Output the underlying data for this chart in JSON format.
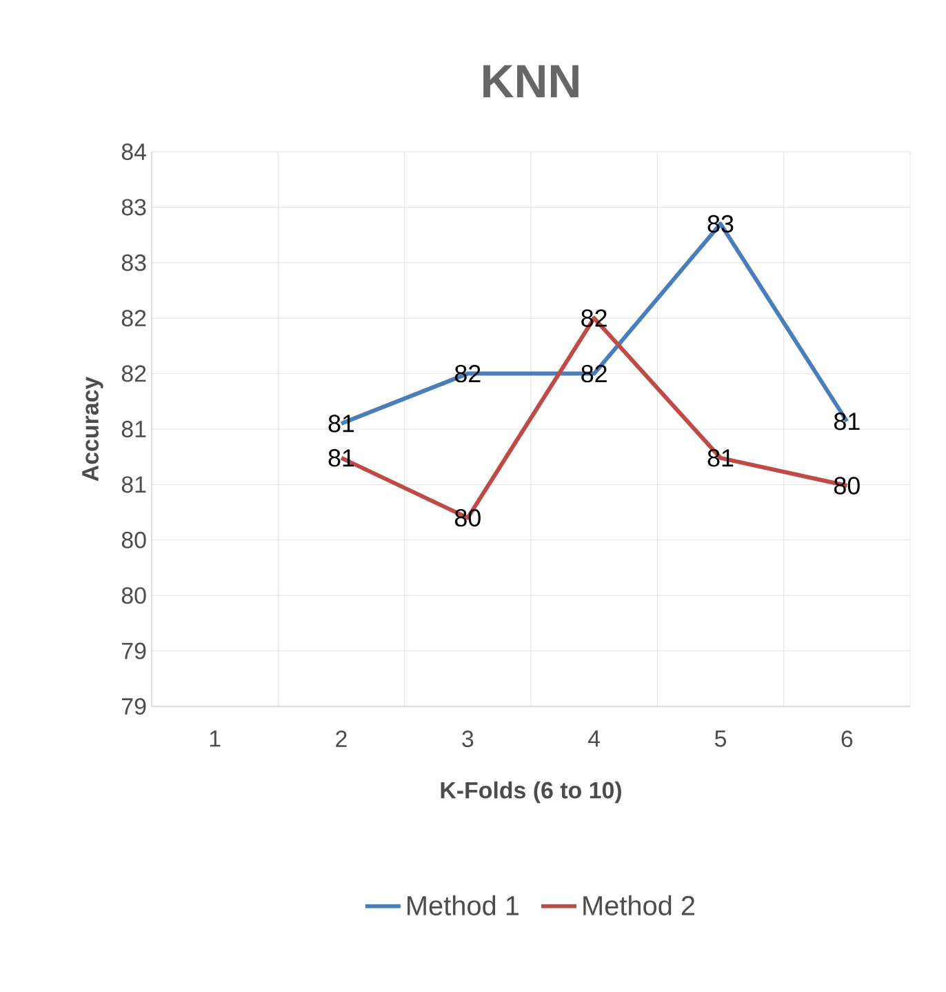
{
  "chart_data": {
    "type": "line",
    "title": "KNN",
    "xlabel": "K-Folds (6 to 10)",
    "ylabel": "Accuracy",
    "categories": [
      "1",
      "2",
      "3",
      "4",
      "5",
      "6"
    ],
    "series": [
      {
        "name": "Method 1",
        "color": "#4a7ebb",
        "values": [
          null,
          81.05,
          81.5,
          81.5,
          82.85,
          81.07
        ],
        "value_labels": [
          null,
          "81",
          "82",
          "82",
          "83",
          "81"
        ]
      },
      {
        "name": "Method 2",
        "color": "#be4b48",
        "values": [
          null,
          80.74,
          80.2,
          82.0,
          80.74,
          80.49
        ],
        "value_labels": [
          null,
          "81",
          "80",
          "82",
          "81",
          "80"
        ]
      }
    ],
    "ylim": [
      78.5,
      83.5
    ],
    "yticks": [
      {
        "value": 78.5,
        "label": "79"
      },
      {
        "value": 79,
        "label": "79"
      },
      {
        "value": 79.5,
        "label": "80"
      },
      {
        "value": 80,
        "label": "80"
      },
      {
        "value": 80.5,
        "label": "81"
      },
      {
        "value": 81,
        "label": "81"
      },
      {
        "value": 81.5,
        "label": "82"
      },
      {
        "value": 82,
        "label": "82"
      },
      {
        "value": 82.5,
        "label": "83"
      },
      {
        "value": 83,
        "label": "83"
      },
      {
        "value": 83.5,
        "label": "84"
      }
    ],
    "grid": true,
    "legend": "bottom",
    "marker": "none",
    "line_style": "solid"
  }
}
